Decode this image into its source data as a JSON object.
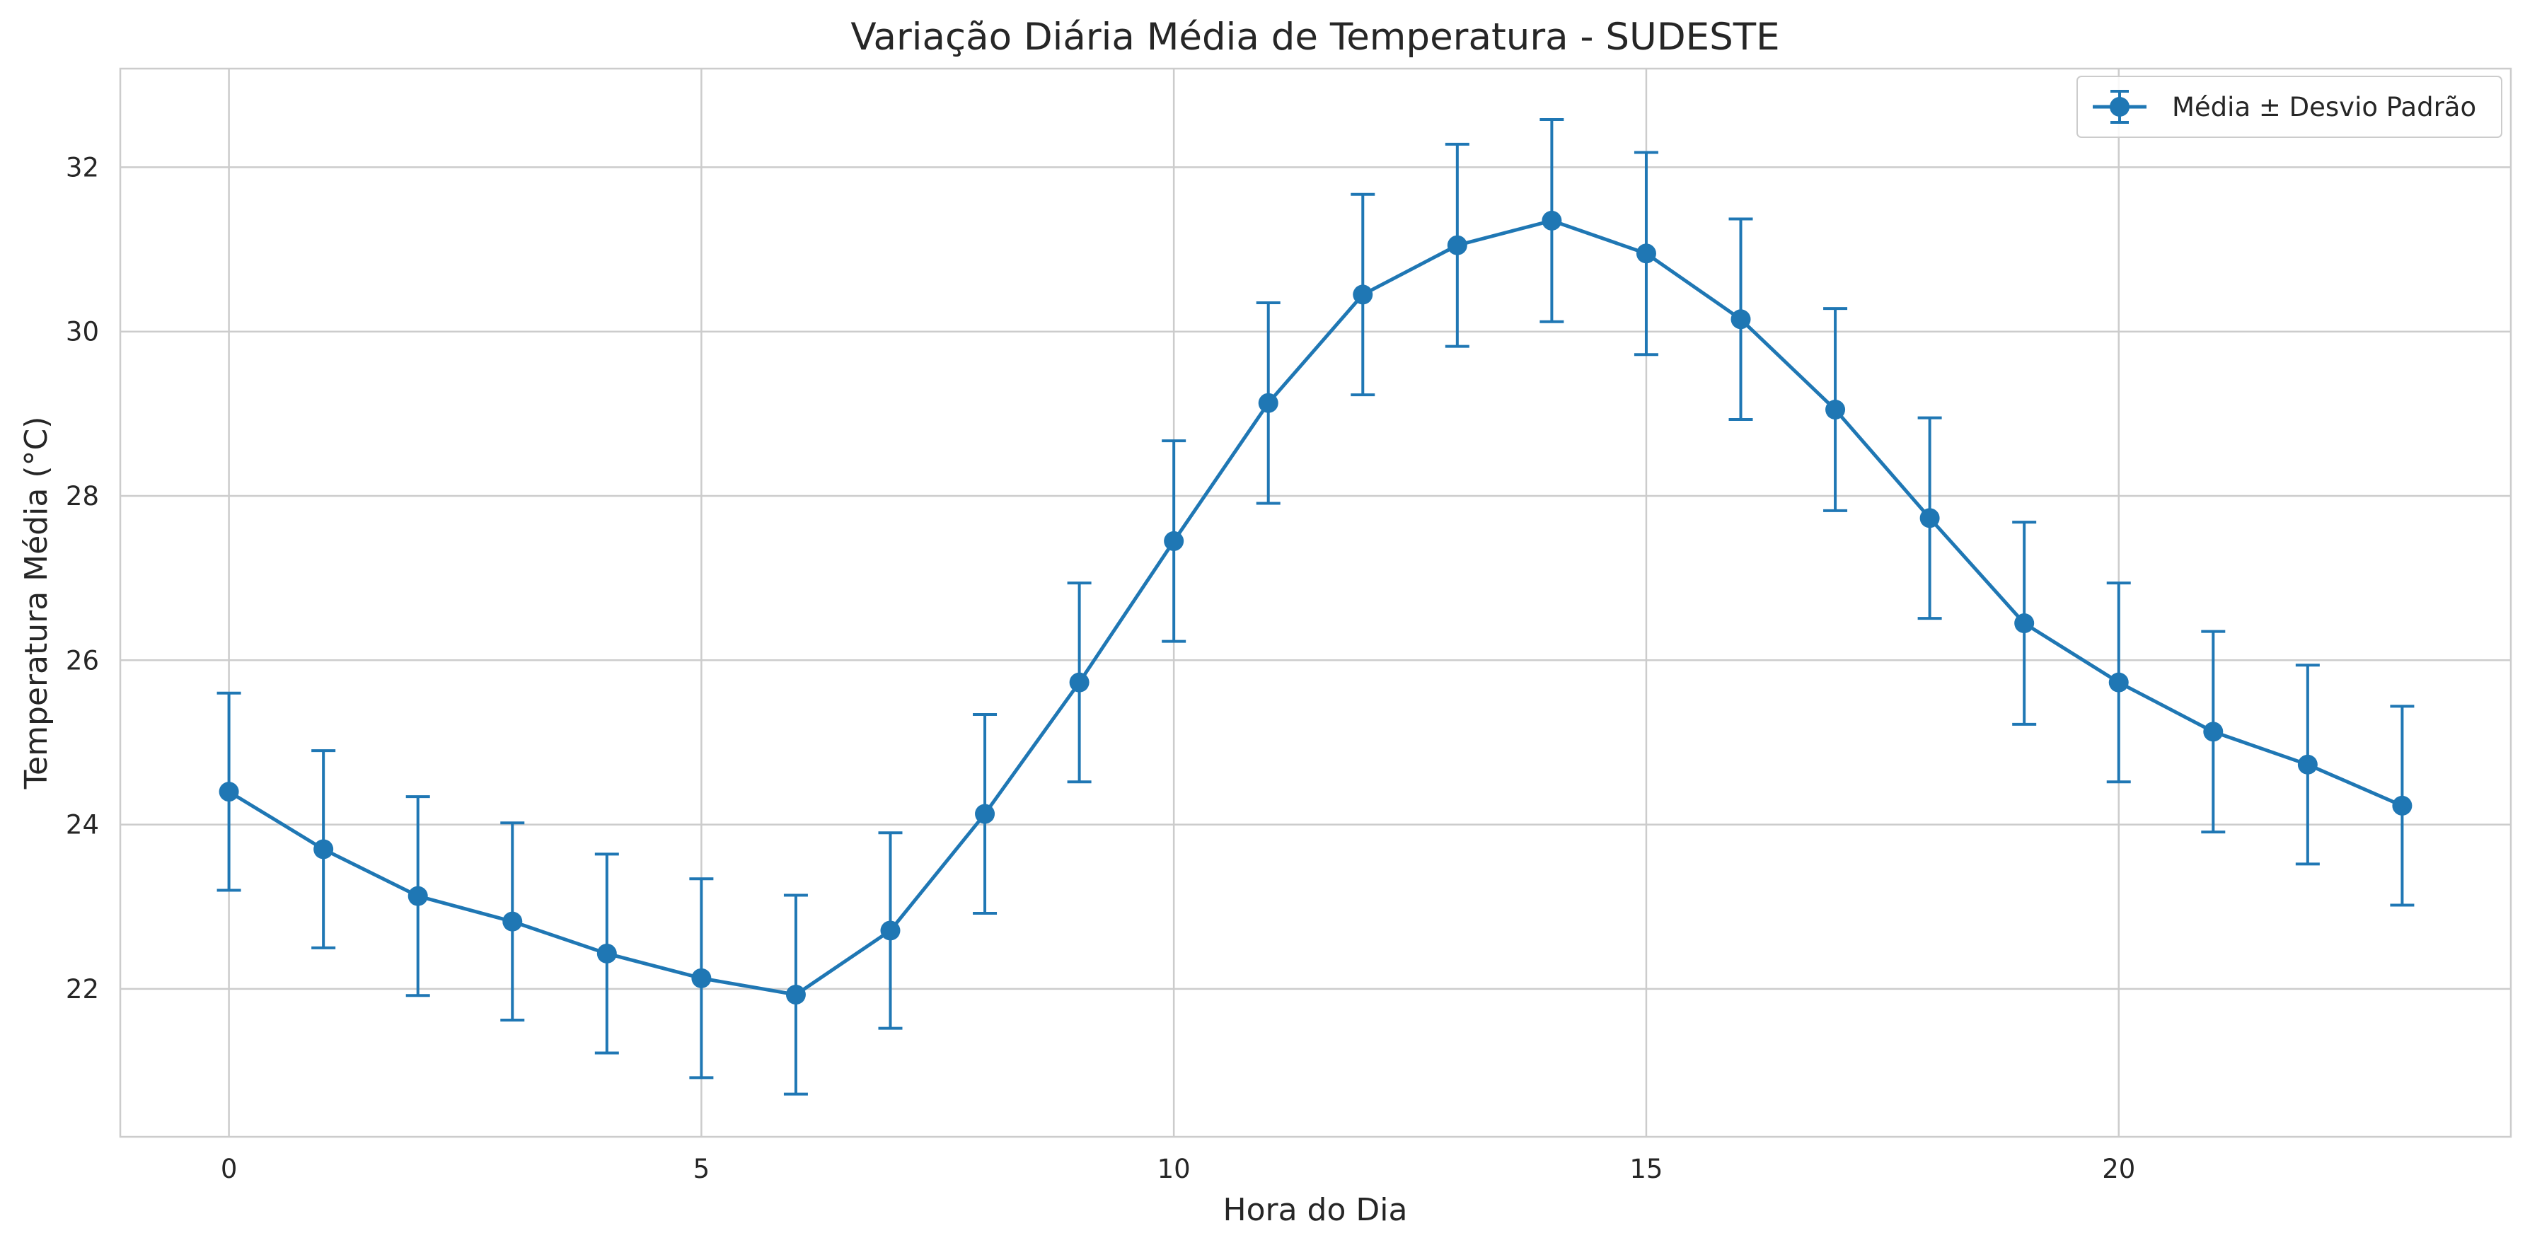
{
  "chart_data": {
    "type": "line",
    "title": "Variação Diária Média de Temperatura - SUDESTE",
    "xlabel": "Hora do Dia",
    "ylabel": "Temperatura Média (°C)",
    "xlim": [
      -1.15,
      24.15
    ],
    "ylim": [
      20.2,
      33.2
    ],
    "xticks": [
      0,
      5,
      10,
      15,
      20
    ],
    "yticks": [
      22,
      24,
      26,
      28,
      30,
      32
    ],
    "grid": true,
    "legend_position": "top-right",
    "series": [
      {
        "name": "Média ± Desvio Padrão",
        "color": "#1f77b4",
        "x": [
          0,
          1,
          2,
          3,
          4,
          5,
          6,
          7,
          8,
          9,
          10,
          11,
          12,
          13,
          14,
          15,
          16,
          17,
          18,
          19,
          20,
          21,
          22,
          23
        ],
        "y": [
          24.4,
          23.7,
          23.13,
          22.82,
          22.43,
          22.13,
          21.93,
          22.71,
          24.13,
          25.73,
          27.45,
          29.13,
          30.45,
          31.05,
          31.35,
          30.95,
          30.15,
          29.05,
          27.73,
          26.45,
          25.73,
          25.13,
          24.73,
          24.23
        ],
        "yerr": [
          1.2,
          1.2,
          1.21,
          1.2,
          1.21,
          1.21,
          1.21,
          1.19,
          1.21,
          1.21,
          1.22,
          1.22,
          1.22,
          1.23,
          1.23,
          1.23,
          1.22,
          1.23,
          1.22,
          1.23,
          1.21,
          1.22,
          1.21,
          1.21
        ]
      }
    ]
  }
}
